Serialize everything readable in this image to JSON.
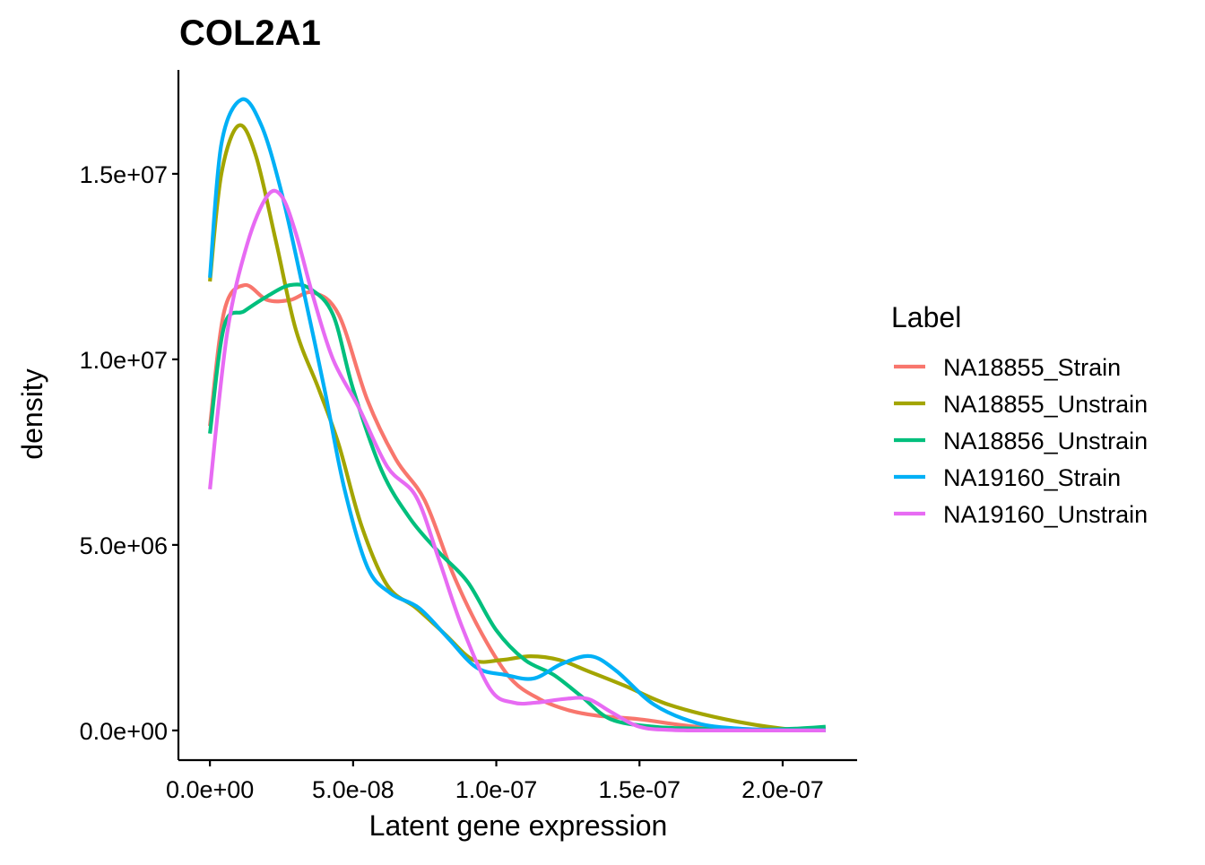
{
  "chart_data": {
    "type": "line",
    "title": "COL2A1",
    "xlabel": "Latent gene expression",
    "ylabel": "density",
    "xlim": [
      -1.1e-08,
      2.26e-07
    ],
    "ylim": [
      -800000.0,
      17800000.0
    ],
    "x_ticks": [
      0,
      5e-08,
      1e-07,
      1.5e-07,
      2e-07
    ],
    "x_tick_labels": [
      "0.0e+00",
      "5.0e-08",
      "1.0e-07",
      "1.5e-07",
      "2.0e-07"
    ],
    "y_ticks": [
      0,
      5000000.0,
      10000000.0,
      15000000.0
    ],
    "y_tick_labels": [
      "0.0e+00",
      "5.0e+06",
      "1.0e+07",
      "1.5e+07"
    ],
    "grid": false,
    "legend": {
      "title": "Label",
      "position": "right"
    },
    "series": [
      {
        "name": "NA18855_Strain",
        "color": "#F8766D",
        "x": [
          0,
          5e-09,
          1.2e-08,
          2e-08,
          2.8e-08,
          3.6e-08,
          4.5e-08,
          5.5e-08,
          6.5e-08,
          7.5e-08,
          8.5e-08,
          9.5e-08,
          1.05e-07,
          1.15e-07,
          1.25e-07,
          1.35e-07,
          1.5e-07,
          1.7e-07,
          1.9e-07,
          2.15e-07
        ],
        "y": [
          8200000.0,
          11300000.0,
          12000000.0,
          11600000.0,
          11600000.0,
          11800000.0,
          11200000.0,
          8900000.0,
          7300000.0,
          6200000.0,
          4200000.0,
          2600000.0,
          1400000.0,
          850000.0,
          550000.0,
          400000.0,
          300000.0,
          100000.0,
          30000.0,
          0
        ]
      },
      {
        "name": "NA18855_Unstrain",
        "color": "#A3A500",
        "x": [
          0,
          4e-09,
          1e-08,
          1.6e-08,
          2.3e-08,
          3e-08,
          3.8e-08,
          4.5e-08,
          5.3e-08,
          6.2e-08,
          7.2e-08,
          8.2e-08,
          9.2e-08,
          1.02e-07,
          1.12e-07,
          1.22e-07,
          1.32e-07,
          1.45e-07,
          1.6e-07,
          1.8e-07,
          2e-07,
          2.15e-07
        ],
        "y": [
          12100000.0,
          15000000.0,
          16300000.0,
          15500000.0,
          13200000.0,
          10800000.0,
          9200000.0,
          7700000.0,
          5500000.0,
          3900000.0,
          3300000.0,
          2600000.0,
          1900000.0,
          1900000.0,
          2000000.0,
          1900000.0,
          1600000.0,
          1200000.0,
          700000.0,
          300000.0,
          50000.0,
          0
        ]
      },
      {
        "name": "NA18856_Unstrain",
        "color": "#00BF7D",
        "x": [
          0,
          5e-09,
          1.2e-08,
          2e-08,
          2.8e-08,
          3.5e-08,
          4.3e-08,
          5e-08,
          6e-08,
          7e-08,
          8e-08,
          9e-08,
          1e-07,
          1.1e-07,
          1.2e-07,
          1.3e-07,
          1.4e-07,
          1.55e-07,
          1.7e-07,
          1.9e-07,
          2.05e-07,
          2.15e-07
        ],
        "y": [
          8000000.0,
          10900000.0,
          11300000.0,
          11700000.0,
          12000000.0,
          11900000.0,
          11200000.0,
          9200000.0,
          7000000.0,
          5700000.0,
          4800000.0,
          4000000.0,
          2700000.0,
          1900000.0,
          1500000.0,
          900000.0,
          300000.0,
          100000.0,
          50000.0,
          20000.0,
          50000.0,
          100000.0
        ]
      },
      {
        "name": "NA19160_Strain",
        "color": "#00B0F6",
        "x": [
          0,
          4e-09,
          1.1e-08,
          1.8e-08,
          2.5e-08,
          3.2e-08,
          4e-08,
          4.7e-08,
          5.5e-08,
          6.3e-08,
          7.3e-08,
          8.3e-08,
          9.3e-08,
          1.03e-07,
          1.13e-07,
          1.23e-07,
          1.33e-07,
          1.42e-07,
          1.55e-07,
          1.7e-07,
          1.85e-07,
          2e-07,
          2.15e-07
        ],
        "y": [
          12200000.0,
          15800000.0,
          17000000.0,
          16300000.0,
          14500000.0,
          12100000.0,
          9200000.0,
          6500000.0,
          4400000.0,
          3700000.0,
          3300000.0,
          2500000.0,
          1700000.0,
          1500000.0,
          1400000.0,
          1800000.0,
          2000000.0,
          1600000.0,
          700000.0,
          200000.0,
          50000.0,
          10000.0,
          0
        ]
      },
      {
        "name": "NA19160_Unstrain",
        "color": "#E76BF3",
        "x": [
          0,
          6e-09,
          1.3e-08,
          2e-08,
          2.5e-08,
          3e-08,
          3.6e-08,
          4.3e-08,
          5.2e-08,
          6.2e-08,
          7.2e-08,
          8e-08,
          8.8e-08,
          9.8e-08,
          1.06e-07,
          1.14e-07,
          1.24e-07,
          1.32e-07,
          1.4e-07,
          1.5e-07,
          1.62e-07,
          1.8e-07,
          2e-07,
          2.15e-07
        ],
        "y": [
          6500000.0,
          10700000.0,
          13100000.0,
          14400000.0,
          14400000.0,
          13400000.0,
          11700000.0,
          10000000.0,
          8700000.0,
          7100000.0,
          6300000.0,
          4600000.0,
          2800000.0,
          1100000.0,
          750000.0,
          750000.0,
          850000.0,
          850000.0,
          500000.0,
          100000.0,
          10000.0,
          0,
          0,
          0
        ]
      }
    ]
  }
}
